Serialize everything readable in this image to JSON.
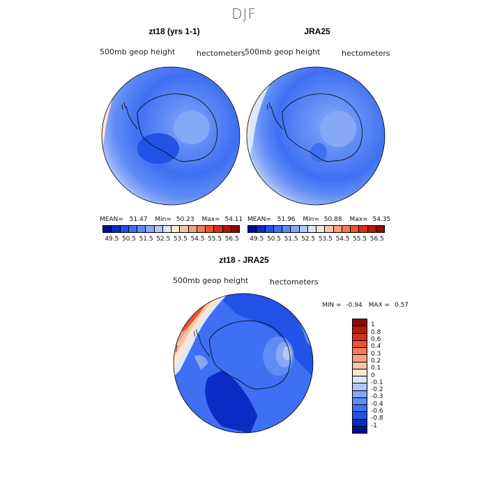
{
  "figure": {
    "title": "DJF"
  },
  "panels": [
    {
      "title": "zt18 (yrs 1-1)",
      "variable": "500mb geop height",
      "units": "hectometers",
      "stats": {
        "mean_label": "MEAN=",
        "mean": "51.47",
        "min_label": "Min=",
        "min": "50.23",
        "max_label": "Max=",
        "max": "54.11"
      }
    },
    {
      "title": "JRA25",
      "variable": "500mb geop height",
      "units": "hectometers",
      "stats": {
        "mean_label": "MEAN=",
        "mean": "51.96",
        "min_label": "Min=",
        "min": "50.88",
        "max_label": "Max=",
        "max": "54.35"
      }
    },
    {
      "title": "zt18 - JRA25",
      "variable": "500mb geop height",
      "units": "hectometers",
      "stats": {
        "min_label": "MIN =",
        "min": "-0.94",
        "max_label": "MAX =",
        "max": "0.57"
      }
    }
  ],
  "colorbar_top": {
    "labels": [
      "49.5",
      "50.5",
      "51.5",
      "52.5",
      "53.5",
      "54.5",
      "55.5",
      "56.5"
    ],
    "colors": [
      "#000f8f",
      "#0a2cc4",
      "#2352e6",
      "#3f6ff2",
      "#5f8bf5",
      "#86a8f7",
      "#b2c8f9",
      "#dde7fb",
      "#fbe6d4",
      "#f8c4a8",
      "#f5a07f",
      "#f27a56",
      "#ec5330",
      "#d7301b",
      "#b2190d",
      "#8a0a05"
    ]
  },
  "colorbar_diff": {
    "labels": [
      "1",
      "0.8",
      "0.6",
      "0.4",
      "0.3",
      "0.2",
      "0.1",
      "0",
      "-0.1",
      "-0.2",
      "-0.3",
      "-0.4",
      "-0.6",
      "-0.8",
      "-1"
    ],
    "colors": [
      "#8a0a05",
      "#b2190d",
      "#d7301b",
      "#ec5330",
      "#f27a56",
      "#f5a07f",
      "#f8c4a8",
      "#fbe6d4",
      "#dde7fb",
      "#b2c8f9",
      "#86a8f7",
      "#5f8bf5",
      "#3f6ff2",
      "#2352e6",
      "#0a2cc4",
      "#000f8f"
    ]
  }
}
